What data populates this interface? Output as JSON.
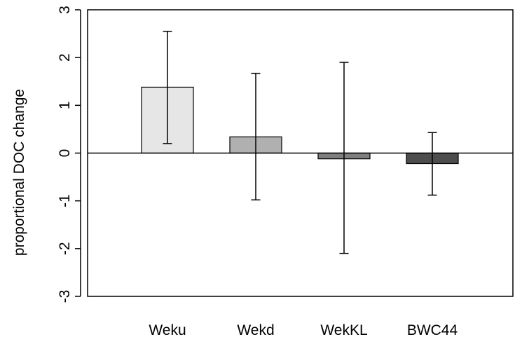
{
  "chart_data": {
    "type": "bar",
    "categories": [
      "Weku",
      "Wekd",
      "WekKL",
      "BWC44"
    ],
    "values": [
      1.38,
      0.34,
      -0.12,
      -0.22
    ],
    "error_bars": {
      "upper": [
        2.55,
        1.67,
        1.9,
        0.43
      ],
      "lower": [
        0.2,
        -0.98,
        -2.1,
        -0.88
      ]
    },
    "bar_colors": [
      "#e6e6e6",
      "#b0b0b0",
      "#7f7f7f",
      "#4d4d4d"
    ],
    "ylabel": "proportional DOC change",
    "xlabel": "",
    "title": "",
    "ylim": [
      -3,
      3
    ],
    "yticks": [
      3,
      2,
      1,
      0,
      -1,
      -2,
      -3
    ],
    "ytick_labels": [
      "3",
      "2",
      "1",
      "0",
      "-1",
      "-2",
      "-3"
    ],
    "zero_line": true,
    "grid": false,
    "legend": "none"
  }
}
